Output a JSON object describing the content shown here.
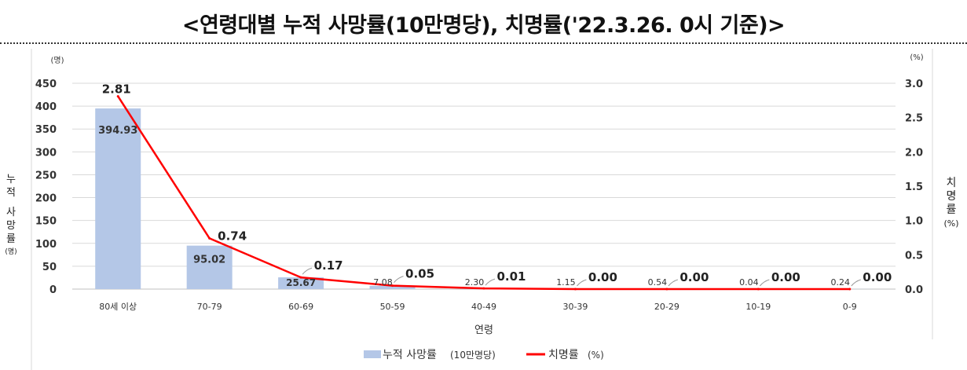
{
  "title": "<연령대별 누적 사망률(10만명당), 치명률('22.3.26. 0시 기준)>",
  "chart_data": {
    "type": "bar",
    "title": "<연령대별 누적 사망률(10만명당), 치명률('22.3.26. 0시 기준)>",
    "xlabel": "연령",
    "ylabel": "누적 사망률",
    "ylabel_unit": "(명)",
    "y2label": "치명률",
    "y2label_unit": "(%)",
    "categories": [
      "80세 이상",
      "70-79",
      "60-69",
      "50-59",
      "40-49",
      "30-39",
      "20-29",
      "10-19",
      "0-9"
    ],
    "series": [
      {
        "name": "누적 사망률(10만명당)",
        "type": "bar",
        "axis": "left",
        "values": [
          394.93,
          95.02,
          25.67,
          7.08,
          2.3,
          1.15,
          0.54,
          0.04,
          0.24
        ],
        "labels": [
          "394.93",
          "95.02",
          "25.67",
          "7.08",
          "2.30",
          "1.15",
          "0.54",
          "0.04",
          "0.24"
        ],
        "color": "#b4c7e7"
      },
      {
        "name": "치명률(%)",
        "type": "line",
        "axis": "right",
        "values": [
          2.81,
          0.74,
          0.17,
          0.05,
          0.01,
          0.0,
          0.0,
          0.0,
          0.0
        ],
        "labels": [
          "2.81",
          "0.74",
          "0.17",
          "0.05",
          "0.01",
          "0.00",
          "0.00",
          "0.00",
          "0.00"
        ],
        "color": "#ff0000"
      }
    ],
    "ylim": [
      0,
      450
    ],
    "y_ticks": [
      "0",
      "50",
      "100",
      "150",
      "200",
      "250",
      "300",
      "350",
      "400",
      "450"
    ],
    "y2lim": [
      0,
      3.0
    ],
    "y2_ticks": [
      "0.0",
      "0.5",
      "1.0",
      "1.5",
      "2.0",
      "2.5",
      "3.0"
    ],
    "grid": true,
    "legend_position": "bottom",
    "legend": [
      {
        "label": "누적 사망률",
        "suffix": "(10만명당)",
        "kind": "bar",
        "color": "#b4c7e7"
      },
      {
        "label": "치명률",
        "suffix": "(%)",
        "kind": "line",
        "color": "#ff0000"
      }
    ]
  }
}
